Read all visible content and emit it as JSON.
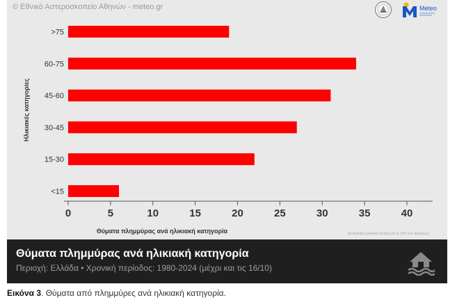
{
  "source": "© Εθνικό Αστεροσκοπείο Αθηνών - meteo.gr",
  "logo_text": "Meteo",
  "note": "(Ενδεικτική ηλικιακή ένταξη για το 72% των θυμάτων)",
  "colors": {
    "bar": "#ff0000",
    "background": "#e9e9e9",
    "banner": "#1f1f1f"
  },
  "banner": {
    "title": "Θύματα πλημμύρας ανά ηλικιακή κατηγορία",
    "subtitle": "Περιοχή: Ελλάδα • Χρονική περίοδος: 1980-2024 (μέχρι και τις 16/10)",
    "icon": "flood-house-icon"
  },
  "caption": {
    "label": "Εικόνα 3",
    "text": ". Θύματα από πλημμύρες ανά ηλικιακή κατηγορία."
  },
  "chart_data": {
    "type": "bar",
    "orientation": "horizontal",
    "categories": [
      ">75",
      "60-75",
      "45-60",
      "30-45",
      "15-30",
      "<15"
    ],
    "values": [
      19,
      34,
      31,
      27,
      22,
      6
    ],
    "xlabel": "Θύματα πλημμύρας ανά ηλικιακή κατηγορία",
    "ylabel": "Ηλικιακές κατηγορίες",
    "xlim": [
      0,
      40
    ],
    "xticks": [
      0,
      5,
      10,
      15,
      20,
      25,
      30,
      35,
      40
    ],
    "grid": false,
    "legend": "none"
  }
}
